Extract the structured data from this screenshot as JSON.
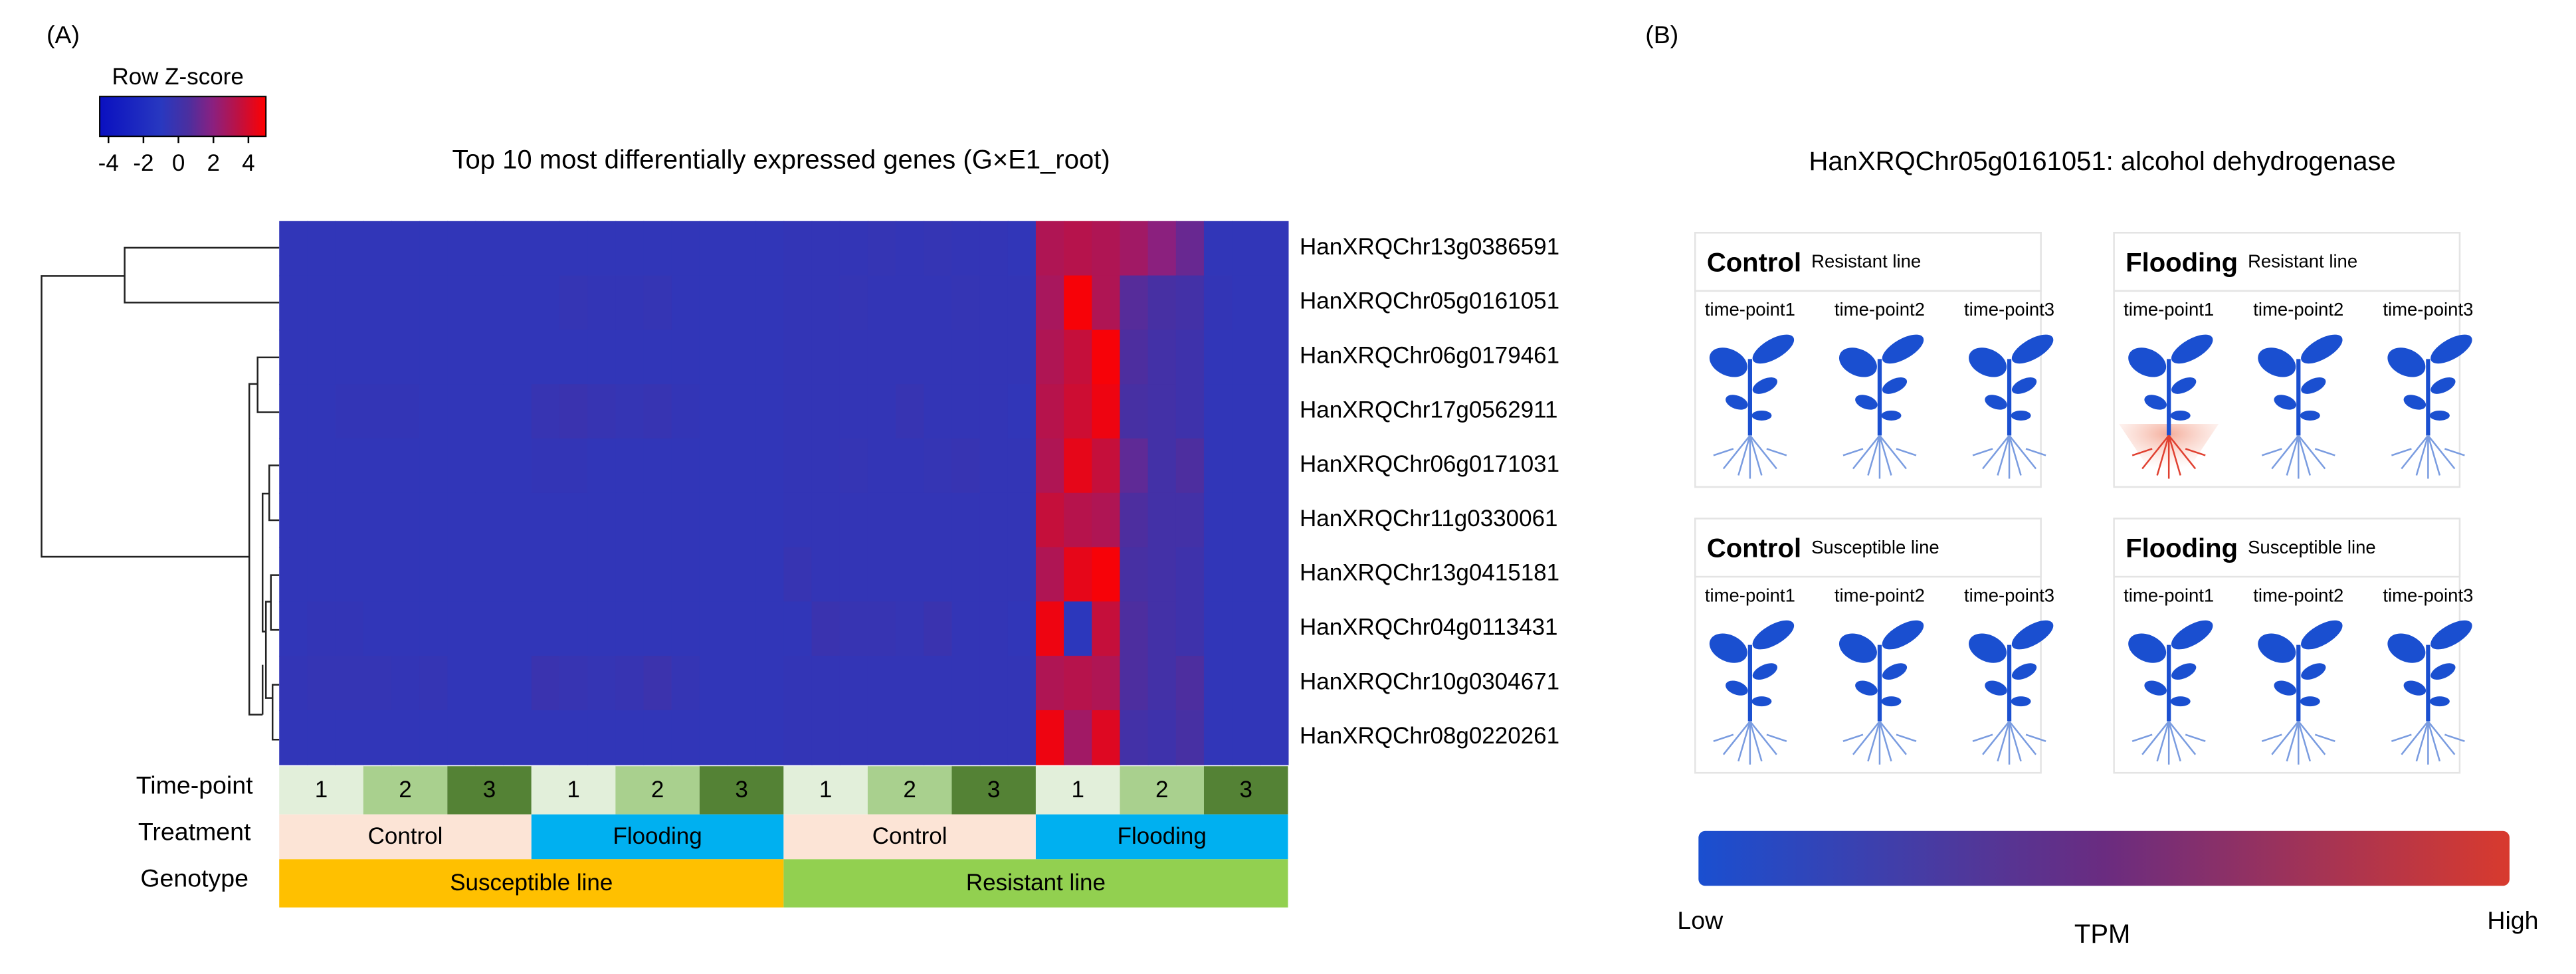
{
  "panel_a": {
    "label": "(A)",
    "title": "Top 10 most differentially expressed genes (G×E1_root)",
    "legend_title": "Row Z-score",
    "legend_ticks": [
      -4,
      -2,
      0,
      2,
      4
    ],
    "zlim": [
      -4.5,
      5
    ],
    "genes": [
      "HanXRQChr13g0386591",
      "HanXRQChr05g0161051",
      "HanXRQChr06g0179461",
      "HanXRQChr17g0562911",
      "HanXRQChr06g0171031",
      "HanXRQChr11g0330061",
      "HanXRQChr13g0415181",
      "HanXRQChr04g0113431",
      "HanXRQChr10g0304671",
      "HanXRQChr08g0220261"
    ],
    "matrix": [
      [
        -0.6,
        -0.6,
        -0.6,
        -0.6,
        -0.6,
        -0.6,
        -0.6,
        -0.6,
        -0.6,
        -0.6,
        -0.6,
        -0.6,
        -0.6,
        -0.6,
        -0.6,
        -0.6,
        -0.6,
        -0.6,
        -0.5,
        -0.5,
        -0.5,
        -0.4,
        -0.5,
        -0.4,
        -0.5,
        -0.5,
        -0.6,
        3.0,
        3.2,
        3.0,
        2.6,
        2.0,
        1.2,
        -0.6,
        -0.6,
        -0.6
      ],
      [
        -0.6,
        -0.6,
        -0.6,
        -0.6,
        -0.6,
        -0.6,
        -0.6,
        -0.6,
        -0.6,
        -0.6,
        -0.4,
        -0.5,
        -0.5,
        -0.4,
        -0.6,
        -0.6,
        -0.6,
        -0.6,
        -0.5,
        -0.5,
        -0.4,
        -0.5,
        -0.5,
        -0.5,
        -0.4,
        -0.5,
        -0.5,
        2.8,
        4.8,
        3.0,
        0.8,
        0.4,
        0.2,
        -0.5,
        -0.6,
        -0.6
      ],
      [
        -0.6,
        -0.6,
        -0.6,
        -0.6,
        -0.6,
        -0.6,
        -0.6,
        -0.6,
        -0.6,
        -0.6,
        -0.6,
        -0.6,
        -0.6,
        -0.6,
        -0.6,
        -0.6,
        -0.6,
        -0.6,
        -0.5,
        -0.5,
        -0.5,
        -0.5,
        -0.5,
        -0.5,
        -0.5,
        -0.5,
        -0.5,
        3.0,
        3.6,
        4.8,
        0.6,
        0.2,
        0.0,
        -0.6,
        -0.6,
        -0.6
      ],
      [
        -0.6,
        -0.6,
        -0.5,
        -0.5,
        -0.5,
        -0.6,
        -0.6,
        -0.6,
        -0.6,
        -0.3,
        -0.2,
        -0.3,
        -0.4,
        -0.3,
        -0.5,
        -0.6,
        -0.6,
        -0.6,
        -0.5,
        -0.5,
        -0.5,
        -0.5,
        -0.3,
        -0.5,
        -0.5,
        -0.5,
        -0.6,
        3.2,
        3.8,
        4.6,
        0.4,
        0.2,
        0.0,
        -0.6,
        -0.6,
        -0.6
      ],
      [
        -0.6,
        -0.6,
        -0.6,
        -0.6,
        -0.6,
        -0.6,
        -0.6,
        -0.6,
        -0.6,
        -0.5,
        -0.5,
        -0.6,
        -0.6,
        -0.6,
        -0.6,
        -0.6,
        -0.6,
        -0.6,
        -0.5,
        -0.5,
        -0.4,
        -0.5,
        -0.5,
        -0.4,
        -0.3,
        -0.5,
        -0.5,
        3.0,
        4.4,
        3.6,
        1.0,
        0.2,
        0.6,
        -0.6,
        -0.6,
        -0.6
      ],
      [
        -0.6,
        -0.6,
        -0.6,
        -0.6,
        -0.6,
        -0.6,
        -0.6,
        -0.6,
        -0.6,
        -0.6,
        -0.6,
        -0.6,
        -0.6,
        -0.6,
        -0.6,
        -0.6,
        -0.6,
        -0.6,
        -0.5,
        -0.5,
        -0.5,
        -0.5,
        -0.5,
        -0.5,
        -0.5,
        -0.5,
        -0.5,
        3.6,
        3.2,
        3.0,
        0.6,
        0.2,
        0.2,
        -0.6,
        -0.6,
        -0.6
      ],
      [
        -0.6,
        -0.6,
        -0.6,
        -0.6,
        -0.6,
        -0.6,
        -0.6,
        -0.6,
        -0.6,
        -0.6,
        -0.6,
        -0.6,
        -0.6,
        -0.6,
        -0.6,
        -0.6,
        -0.6,
        -0.6,
        -0.3,
        -0.5,
        -0.5,
        -0.5,
        -0.5,
        -0.5,
        -0.5,
        -0.5,
        -0.5,
        3.0,
        4.4,
        4.8,
        0.4,
        0.2,
        0.0,
        -0.6,
        -0.6,
        -0.6
      ],
      [
        -0.6,
        -0.5,
        -0.5,
        -0.6,
        -0.6,
        -0.6,
        -0.6,
        -0.6,
        -0.6,
        -0.6,
        -0.6,
        -0.6,
        -0.6,
        -0.6,
        -0.6,
        -0.6,
        -0.6,
        -0.6,
        -0.6,
        -0.2,
        -0.3,
        -0.3,
        -0.4,
        -0.2,
        -0.5,
        -0.5,
        -0.6,
        4.6,
        -0.8,
        3.6,
        0.6,
        0.2,
        0.0,
        -0.6,
        -0.6,
        -0.6
      ],
      [
        -0.5,
        -0.4,
        -0.4,
        -0.4,
        -0.5,
        -0.4,
        -0.6,
        -0.6,
        -0.6,
        -0.2,
        -0.3,
        -0.4,
        -0.3,
        -0.1,
        -0.4,
        -0.6,
        -0.6,
        -0.6,
        -0.5,
        -0.5,
        -0.5,
        -0.5,
        -0.5,
        -0.5,
        -0.5,
        -0.5,
        -0.5,
        3.0,
        3.2,
        3.0,
        0.6,
        0.2,
        0.6,
        -0.6,
        -0.6,
        -0.6
      ],
      [
        -0.6,
        -0.6,
        -0.6,
        -0.6,
        -0.6,
        -0.6,
        -0.6,
        -0.6,
        -0.6,
        -0.6,
        -0.6,
        -0.6,
        -0.6,
        -0.6,
        -0.6,
        -0.6,
        -0.6,
        -0.6,
        -0.5,
        -0.5,
        -0.5,
        -0.5,
        -0.5,
        -0.5,
        -0.5,
        -0.5,
        -0.5,
        4.6,
        2.6,
        4.2,
        0.2,
        0.0,
        0.4,
        -0.6,
        -0.6,
        -0.6
      ]
    ],
    "annotation_labels": [
      "Time-point",
      "Treatment",
      "Genotype"
    ],
    "timepoints": [
      "1",
      "2",
      "3"
    ],
    "treatments": [
      "Control",
      "Flooding",
      "Control",
      "Flooding"
    ],
    "genotypes": [
      "Susceptible line",
      "Resistant line"
    ]
  },
  "panel_b": {
    "label": "(B)",
    "title": "HanXRQChr05g0161051: alcohol dehydrogenase",
    "boxes": [
      {
        "treatment": "Control",
        "line": "Resistant line"
      },
      {
        "treatment": "Flooding",
        "line": "Resistant line"
      },
      {
        "treatment": "Control",
        "line": "Susceptible line"
      },
      {
        "treatment": "Flooding",
        "line": "Susceptible line"
      }
    ],
    "timepoints": [
      "time-point1",
      "time-point2",
      "time-point3"
    ],
    "scale_low": "Low",
    "scale_label": "TPM",
    "scale_high": "High"
  }
}
